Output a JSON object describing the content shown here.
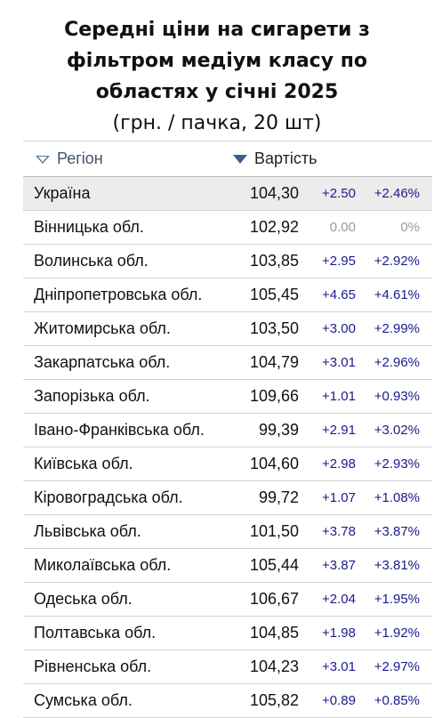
{
  "title_lines": [
    "Середні ціни на сигарети з",
    "фільтром медіум класу по",
    "областях у січні 2025"
  ],
  "subtitle": "(грн. / пачка, 20 шт)",
  "chart_data": {
    "type": "table",
    "columns": [
      "Регіон",
      "Вартість"
    ],
    "rows": [
      {
        "region": "Україна",
        "value": "104,30",
        "abs_change": "+2.50",
        "pct_change": "+2.46%"
      },
      {
        "region": "Вінницька обл.",
        "value": "102,92",
        "abs_change": "0.00",
        "pct_change": "0%"
      },
      {
        "region": "Волинська обл.",
        "value": "103,85",
        "abs_change": "+2.95",
        "pct_change": "+2.92%"
      },
      {
        "region": "Дніпропетровська обл.",
        "value": "105,45",
        "abs_change": "+4.65",
        "pct_change": "+4.61%"
      },
      {
        "region": "Житомирська обл.",
        "value": "103,50",
        "abs_change": "+3.00",
        "pct_change": "+2.99%"
      },
      {
        "region": "Закарпатська обл.",
        "value": "104,79",
        "abs_change": "+3.01",
        "pct_change": "+2.96%"
      },
      {
        "region": "Запорізька обл.",
        "value": "109,66",
        "abs_change": "+1.01",
        "pct_change": "+0.93%"
      },
      {
        "region": "Івано-Франківська обл.",
        "value": "99,39",
        "abs_change": "+2.91",
        "pct_change": "+3.02%"
      },
      {
        "region": "Київська обл.",
        "value": "104,60",
        "abs_change": "+2.98",
        "pct_change": "+2.93%"
      },
      {
        "region": "Кіровоградська обл.",
        "value": "99,72",
        "abs_change": "+1.07",
        "pct_change": "+1.08%"
      },
      {
        "region": "Львівська обл.",
        "value": "101,50",
        "abs_change": "+3.78",
        "pct_change": "+3.87%"
      },
      {
        "region": "Миколаївська обл.",
        "value": "105,44",
        "abs_change": "+3.87",
        "pct_change": "+3.81%"
      },
      {
        "region": "Одеська обл.",
        "value": "106,67",
        "abs_change": "+2.04",
        "pct_change": "+1.95%"
      },
      {
        "region": "Полтавська обл.",
        "value": "104,85",
        "abs_change": "+1.98",
        "pct_change": "+1.92%"
      },
      {
        "region": "Рівненська обл.",
        "value": "104,23",
        "abs_change": "+3.01",
        "pct_change": "+2.97%"
      },
      {
        "region": "Сумська обл.",
        "value": "105,82",
        "abs_change": "+0.89",
        "pct_change": "+0.85%"
      }
    ]
  },
  "colors": {
    "change": "#1a1a8c",
    "zero": "#9a9a9a",
    "highlight_row": "#ececec",
    "header_accent": "#3a5f92"
  },
  "icons": {
    "region_sort": "sort-triangle-outline-icon",
    "value_sort": "sort-triangle-solid-icon"
  }
}
